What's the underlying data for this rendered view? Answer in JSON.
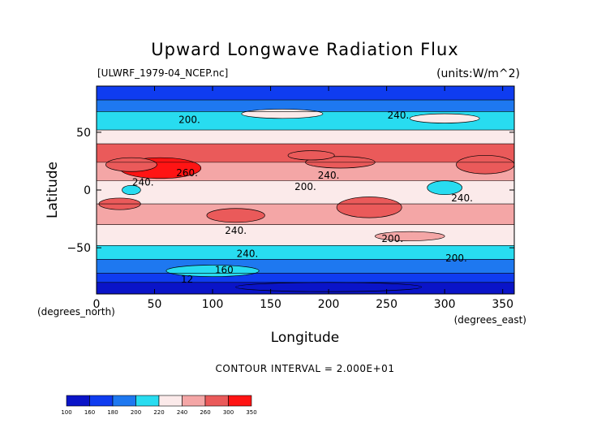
{
  "chart_data": {
    "type": "heatmap",
    "title": "Upward Longwave Radiation Flux",
    "dataset_label": "[ULWRF_1979-04_NCEP.nc]",
    "units_label": "(units:W/m^2)",
    "xlabel": "Longitude",
    "ylabel": "Latitude",
    "x_unit_note": "(degrees_east)",
    "y_unit_note": "(degrees_north)",
    "xlim": [
      0,
      360
    ],
    "ylim": [
      -90,
      90
    ],
    "x_ticks": [
      0,
      50,
      100,
      150,
      200,
      250,
      300,
      350
    ],
    "y_ticks": [
      -50,
      0,
      50
    ],
    "contour_interval": "CONTOUR INTERVAL = 2.000E+01",
    "contour_labels": [
      "200.",
      "240.",
      "260.",
      "240.",
      "200.",
      "240.",
      "240.",
      "240.",
      "200.",
      "240.",
      "200.",
      "160",
      "12"
    ],
    "levels": [
      100,
      160,
      180,
      200,
      220,
      240,
      260,
      300,
      350
    ],
    "colorbar": [
      {
        "from": 100,
        "to": 160,
        "color": "#0a14c8"
      },
      {
        "from": 160,
        "to": 180,
        "color": "#0f3cf0"
      },
      {
        "from": 180,
        "to": 200,
        "color": "#1e78f0"
      },
      {
        "from": 200,
        "to": 220,
        "color": "#28dcf0"
      },
      {
        "from": 220,
        "to": 240,
        "color": "#fbeaea"
      },
      {
        "from": 240,
        "to": 260,
        "color": "#f4a6a6"
      },
      {
        "from": 260,
        "to": 300,
        "color": "#ea5a5a"
      },
      {
        "from": 300,
        "to": 350,
        "color": "#ff1414"
      }
    ],
    "zonal_bands": [
      {
        "lat_top": 90,
        "lat_bottom": 78,
        "value": 170
      },
      {
        "lat_top": 78,
        "lat_bottom": 68,
        "value": 190
      },
      {
        "lat_top": 68,
        "lat_bottom": 52,
        "value": 210
      },
      {
        "lat_top": 52,
        "lat_bottom": 40,
        "value": 230
      },
      {
        "lat_top": 40,
        "lat_bottom": 24,
        "value": 270
      },
      {
        "lat_top": 24,
        "lat_bottom": 8,
        "value": 250
      },
      {
        "lat_top": 8,
        "lat_bottom": -12,
        "value": 230
      },
      {
        "lat_top": -12,
        "lat_bottom": -30,
        "value": 250
      },
      {
        "lat_top": -30,
        "lat_bottom": -48,
        "value": 230
      },
      {
        "lat_top": -48,
        "lat_bottom": -60,
        "value": 210
      },
      {
        "lat_top": -60,
        "lat_bottom": -72,
        "value": 190
      },
      {
        "lat_top": -72,
        "lat_bottom": -80,
        "value": 170
      },
      {
        "lat_top": -80,
        "lat_bottom": -90,
        "value": 130
      }
    ],
    "features": [
      {
        "cx": 55,
        "cy": 19,
        "rx": 35,
        "ry": 9,
        "value": 320
      },
      {
        "cx": 30,
        "cy": 22,
        "rx": 22,
        "ry": 6,
        "value": 280
      },
      {
        "cx": 335,
        "cy": 22,
        "rx": 25,
        "ry": 8,
        "value": 280
      },
      {
        "cx": 210,
        "cy": 24,
        "rx": 30,
        "ry": 5,
        "value": 280
      },
      {
        "cx": 235,
        "cy": -15,
        "rx": 28,
        "ry": 9,
        "value": 280
      },
      {
        "cx": 120,
        "cy": -22,
        "rx": 25,
        "ry": 6,
        "value": 270
      },
      {
        "cx": 20,
        "cy": -12,
        "rx": 18,
        "ry": 5,
        "value": 270
      },
      {
        "cx": 300,
        "cy": 2,
        "rx": 15,
        "ry": 6,
        "value": 210
      },
      {
        "cx": 30,
        "cy": 0,
        "rx": 8,
        "ry": 4,
        "value": 210
      },
      {
        "cx": 185,
        "cy": 30,
        "rx": 20,
        "ry": 4,
        "value": 270
      },
      {
        "cx": 160,
        "cy": 66,
        "rx": 35,
        "ry": 4,
        "value": 230
      },
      {
        "cx": 300,
        "cy": 62,
        "rx": 30,
        "ry": 4,
        "value": 230
      },
      {
        "cx": 270,
        "cy": -40,
        "rx": 30,
        "ry": 4,
        "value": 250
      },
      {
        "cx": 100,
        "cy": -70,
        "rx": 40,
        "ry": 5,
        "value": 210
      },
      {
        "cx": 200,
        "cy": -84,
        "rx": 80,
        "ry": 4,
        "value": 110
      }
    ]
  }
}
